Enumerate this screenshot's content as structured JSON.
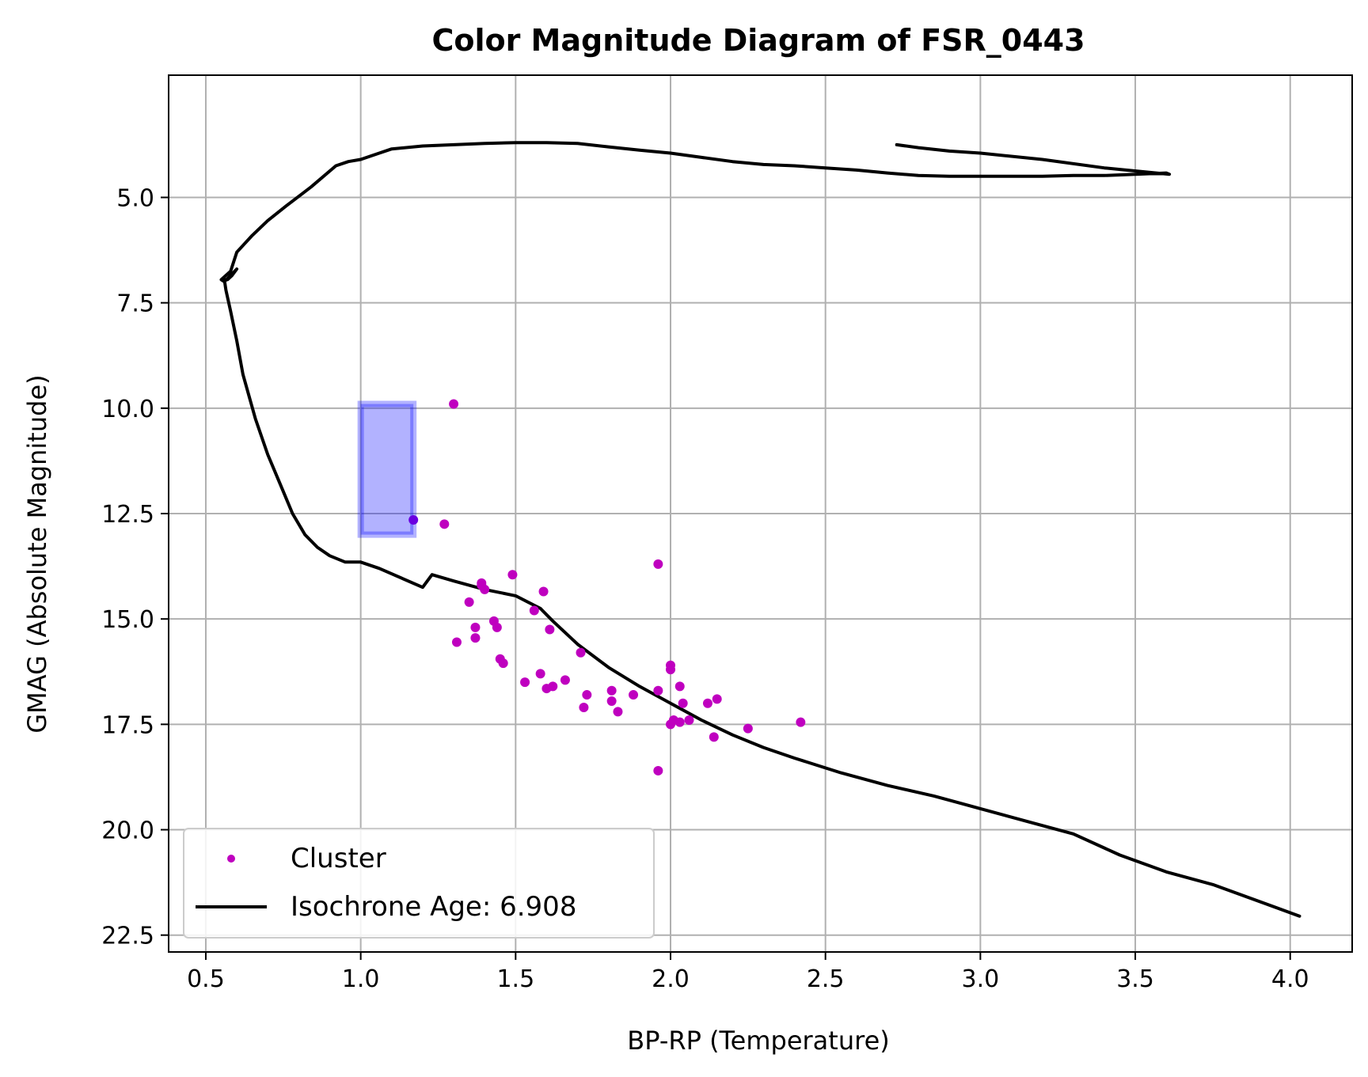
{
  "chart_data": {
    "type": "scatter",
    "title": "Color Magnitude Diagram of FSR_0443",
    "xlabel": "BP-RP (Temperature)",
    "ylabel": "GMAG (Absolute Magnitude)",
    "xlim": [
      0.38,
      4.2
    ],
    "ylim": [
      22.9,
      2.1
    ],
    "y_inverted": true,
    "grid": true,
    "x_ticks": [
      0.5,
      1.0,
      1.5,
      2.0,
      2.5,
      3.0,
      3.5,
      4.0
    ],
    "x_tick_labels": [
      "0.5",
      "1.0",
      "1.5",
      "2.0",
      "2.5",
      "3.0",
      "3.5",
      "4.0"
    ],
    "y_ticks": [
      5.0,
      7.5,
      10.0,
      12.5,
      15.0,
      17.5,
      20.0,
      22.5
    ],
    "y_tick_labels": [
      "5.0",
      "7.5",
      "10.0",
      "12.5",
      "15.0",
      "17.5",
      "20.0",
      "22.5"
    ],
    "legend_position": "lower-left",
    "colors": {
      "cluster": "#bf00bf",
      "isochrone": "#000000",
      "box_fill": "#0000ff",
      "highlight_point": "#6a00e0",
      "grid": "#b0b0b0"
    },
    "series": [
      {
        "name": "Cluster",
        "kind": "scatter",
        "x": [
          1.3,
          1.27,
          1.17,
          1.96,
          1.49,
          1.59,
          1.39,
          1.39,
          1.4,
          1.35,
          1.56,
          1.43,
          1.37,
          1.44,
          1.61,
          1.31,
          1.37,
          1.71,
          1.45,
          1.46,
          2.0,
          2.0,
          1.58,
          1.53,
          1.66,
          1.62,
          1.6,
          1.96,
          2.03,
          1.81,
          1.88,
          1.73,
          2.15,
          1.81,
          2.04,
          2.12,
          1.72,
          1.83,
          2.01,
          2.03,
          2.06,
          2.0,
          2.25,
          2.42,
          2.14,
          1.96
        ],
        "y": [
          9.9,
          12.75,
          12.65,
          13.7,
          13.95,
          14.35,
          14.15,
          14.2,
          14.3,
          14.6,
          14.8,
          15.05,
          15.2,
          15.2,
          15.25,
          15.55,
          15.45,
          15.8,
          15.95,
          16.05,
          16.1,
          16.2,
          16.3,
          16.5,
          16.45,
          16.6,
          16.65,
          16.7,
          16.6,
          16.7,
          16.8,
          16.8,
          16.9,
          16.95,
          17.0,
          17.0,
          17.1,
          17.2,
          17.4,
          17.45,
          17.4,
          17.5,
          17.6,
          17.45,
          17.8,
          18.6
        ]
      },
      {
        "name": "Isochrone Age: 6.908",
        "kind": "line",
        "x": [
          4.03,
          3.9,
          3.75,
          3.6,
          3.45,
          3.3,
          3.15,
          3.0,
          2.85,
          2.7,
          2.55,
          2.4,
          2.3,
          2.2,
          2.1,
          2.0,
          1.9,
          1.8,
          1.7,
          1.62,
          1.58,
          1.5,
          1.4,
          1.3,
          1.23,
          1.2,
          1.06,
          1.0,
          0.95,
          0.9,
          0.86,
          0.82,
          0.78,
          0.74,
          0.7,
          0.66,
          0.62,
          0.6,
          0.58,
          0.565,
          0.56,
          0.57,
          0.585,
          0.6,
          0.56,
          0.55,
          0.58,
          0.6,
          0.65,
          0.7,
          0.76,
          0.84,
          0.92,
          0.96,
          1.0,
          1.06,
          1.1,
          1.2,
          1.3,
          1.4,
          1.5,
          1.6,
          1.7,
          1.8,
          1.9,
          2.0,
          2.1,
          2.2,
          2.3,
          2.4,
          2.5,
          2.6,
          2.7,
          2.8,
          2.9,
          3.0,
          3.1,
          3.2,
          3.3,
          3.4,
          3.5,
          3.6,
          3.61,
          3.4,
          3.2,
          3.0,
          2.9,
          2.8,
          2.73
        ],
        "y": [
          22.05,
          21.7,
          21.3,
          21.0,
          20.6,
          20.1,
          19.8,
          19.5,
          19.2,
          18.95,
          18.65,
          18.3,
          18.05,
          17.75,
          17.4,
          17.0,
          16.6,
          16.15,
          15.6,
          15.05,
          14.75,
          14.45,
          14.3,
          14.1,
          13.95,
          14.25,
          13.8,
          13.65,
          13.65,
          13.5,
          13.3,
          13.0,
          12.5,
          11.8,
          11.1,
          10.25,
          9.2,
          8.4,
          7.7,
          7.2,
          6.95,
          6.95,
          6.85,
          6.7,
          7.0,
          6.95,
          6.75,
          6.3,
          5.9,
          5.55,
          5.2,
          4.75,
          4.25,
          4.15,
          4.1,
          3.95,
          3.85,
          3.78,
          3.75,
          3.72,
          3.7,
          3.7,
          3.72,
          3.8,
          3.88,
          3.95,
          4.05,
          4.15,
          4.22,
          4.25,
          4.3,
          4.35,
          4.42,
          4.48,
          4.5,
          4.5,
          4.5,
          4.5,
          4.48,
          4.48,
          4.45,
          4.42,
          4.45,
          4.3,
          4.1,
          3.95,
          3.9,
          3.82,
          3.75
        ]
      }
    ],
    "highlight_box": {
      "x": [
        1.0,
        1.17
      ],
      "y": [
        9.9,
        13.0
      ]
    }
  }
}
